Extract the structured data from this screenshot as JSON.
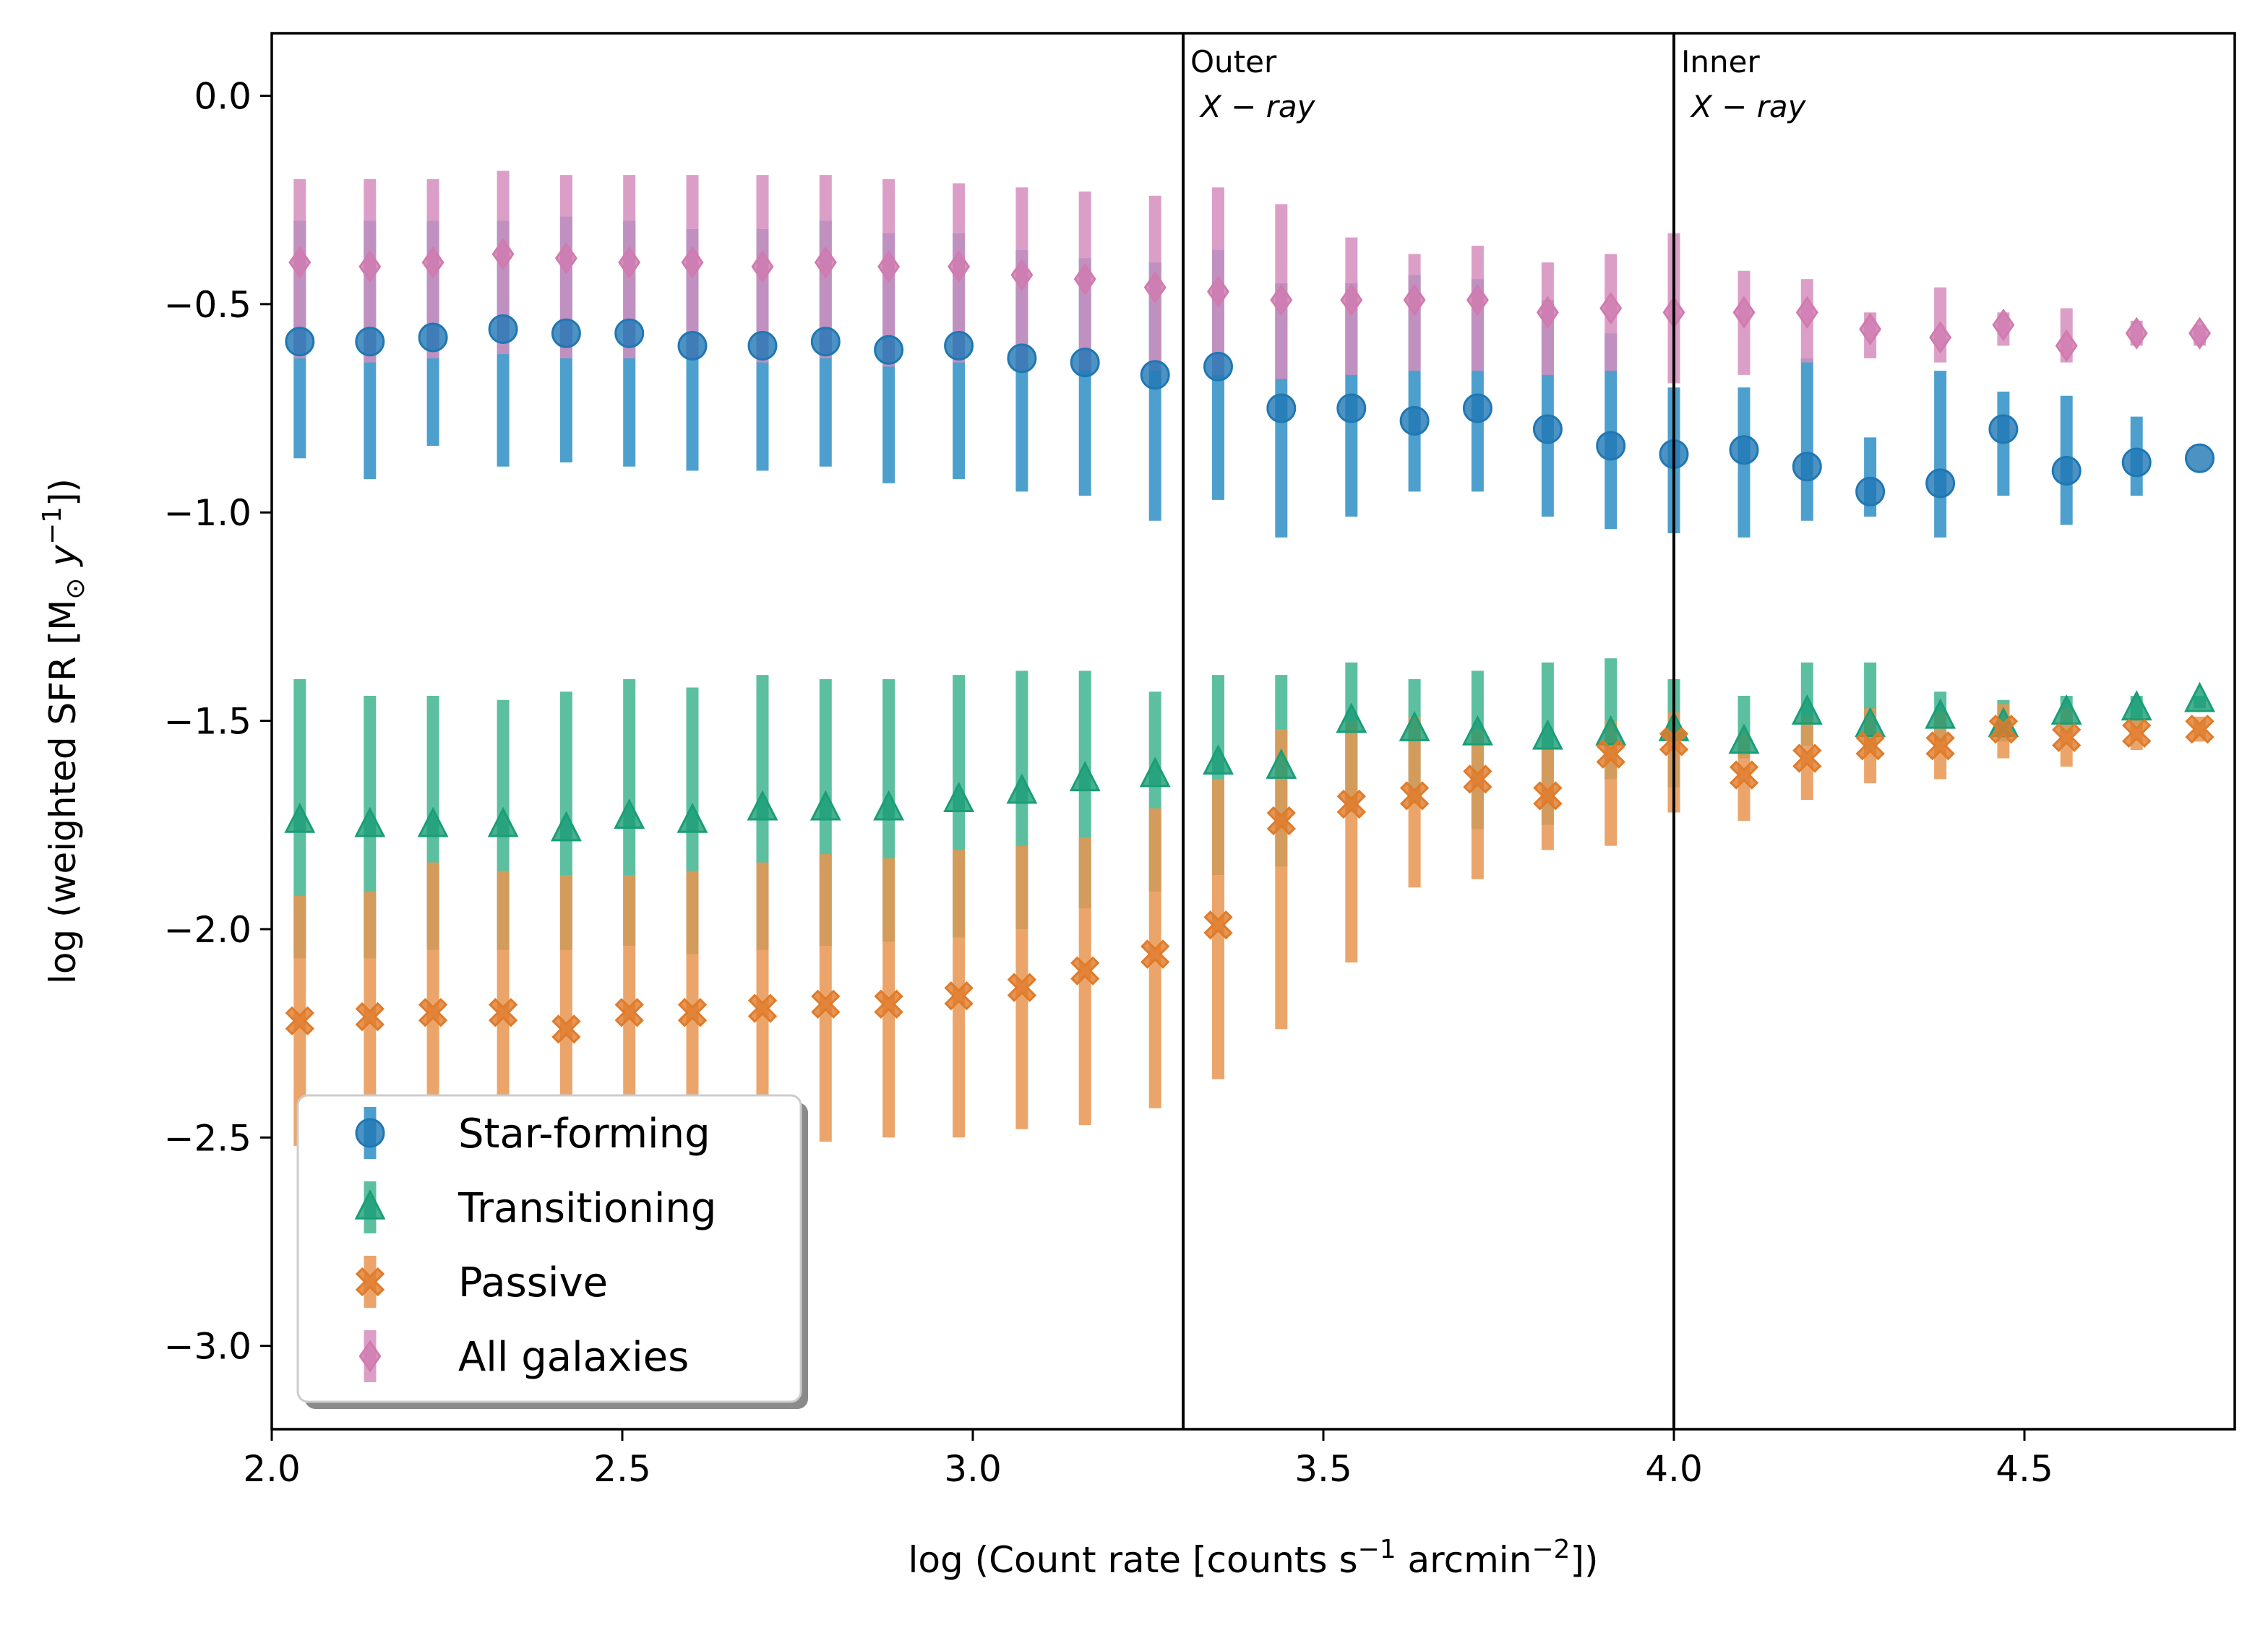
{
  "chart_data": {
    "type": "scatter",
    "xlabel_parts": [
      "log (Count rate [counts s",
      "−1",
      " arcmin",
      "−2",
      "])"
    ],
    "ylabel_parts": [
      "log (weighted SFR [M",
      "⊙",
      " ",
      "y",
      "−1",
      "])"
    ],
    "xlim": [
      2.0,
      4.8
    ],
    "ylim": [
      -3.2,
      0.15
    ],
    "xticks": [
      {
        "v": 2.0,
        "label": "2.0"
      },
      {
        "v": 2.5,
        "label": "2.5"
      },
      {
        "v": 3.0,
        "label": "3.0"
      },
      {
        "v": 3.5,
        "label": "3.5"
      },
      {
        "v": 4.0,
        "label": "4.0"
      },
      {
        "v": 4.5,
        "label": "4.5"
      }
    ],
    "yticks": [
      {
        "v": 0.0,
        "label": "0.0"
      },
      {
        "v": -0.5,
        "label": "−0.5"
      },
      {
        "v": -1.0,
        "label": "−1.0"
      },
      {
        "v": -1.5,
        "label": "−1.5"
      },
      {
        "v": -2.0,
        "label": "−2.0"
      },
      {
        "v": -2.5,
        "label": "−2.5"
      },
      {
        "v": -3.0,
        "label": "−3.0"
      }
    ],
    "vlines": [
      {
        "x": 3.3,
        "label_line1": "Outer",
        "label_line2": "X − ray"
      },
      {
        "x": 4.0,
        "label_line1": "Inner",
        "label_line2": "X − ray"
      }
    ],
    "x": [
      2.04,
      2.14,
      2.23,
      2.33,
      2.42,
      2.51,
      2.6,
      2.7,
      2.79,
      2.88,
      2.98,
      3.07,
      3.16,
      3.26,
      3.35,
      3.44,
      3.54,
      3.63,
      3.72,
      3.82,
      3.91,
      4.0,
      4.1,
      4.19,
      4.28,
      4.38,
      4.47,
      4.56,
      4.66,
      4.75
    ],
    "series": [
      {
        "name": "Star-forming",
        "marker": "circle",
        "color": "#1f77b4",
        "bar_color": "#2e8fc4",
        "values": [
          -0.59,
          -0.59,
          -0.58,
          -0.56,
          -0.57,
          -0.57,
          -0.6,
          -0.6,
          -0.59,
          -0.61,
          -0.6,
          -0.63,
          -0.64,
          -0.67,
          -0.65,
          -0.75,
          -0.75,
          -0.78,
          -0.75,
          -0.8,
          -0.84,
          -0.86,
          -0.85,
          -0.89,
          -0.95,
          -0.93,
          -0.8,
          -0.9,
          -0.88,
          -0.87
        ],
        "lower": [
          -0.87,
          -0.92,
          -0.84,
          -0.89,
          -0.88,
          -0.89,
          -0.9,
          -0.9,
          -0.89,
          -0.93,
          -0.92,
          -0.95,
          -0.96,
          -1.02,
          -0.97,
          -1.06,
          -1.01,
          -0.95,
          -0.95,
          -1.01,
          -1.04,
          -1.05,
          -1.06,
          -1.02,
          -1.01,
          -1.06,
          -0.96,
          -1.03,
          -0.96,
          -0.87
        ],
        "upper": [
          -0.3,
          -0.3,
          -0.3,
          -0.3,
          -0.29,
          -0.3,
          -0.32,
          -0.32,
          -0.3,
          -0.33,
          -0.33,
          -0.37,
          -0.39,
          -0.4,
          -0.37,
          -0.45,
          -0.45,
          -0.43,
          -0.44,
          -0.49,
          -0.57,
          -0.7,
          -0.7,
          -0.63,
          -0.82,
          -0.66,
          -0.71,
          -0.72,
          -0.77,
          -0.87
        ]
      },
      {
        "name": "Transitioning",
        "marker": "triangle",
        "color": "#1a9e77",
        "bar_color": "#3fb48f",
        "values": [
          -1.74,
          -1.75,
          -1.75,
          -1.75,
          -1.76,
          -1.73,
          -1.74,
          -1.71,
          -1.71,
          -1.71,
          -1.69,
          -1.67,
          -1.64,
          -1.63,
          -1.6,
          -1.61,
          -1.5,
          -1.52,
          -1.53,
          -1.54,
          -1.53,
          -1.52,
          -1.55,
          -1.48,
          -1.51,
          -1.49,
          -1.51,
          -1.48,
          -1.47,
          -1.45
        ],
        "lower": [
          -2.07,
          -2.07,
          -2.05,
          -2.05,
          -2.05,
          -2.04,
          -2.06,
          -2.05,
          -2.04,
          -2.03,
          -2.02,
          -2.0,
          -1.95,
          -1.91,
          -1.87,
          -1.85,
          -1.72,
          -1.7,
          -1.76,
          -1.75,
          -1.64,
          -1.66,
          -1.59,
          -1.56,
          -1.57,
          -1.55,
          -1.55,
          -1.53,
          -1.51,
          -1.47
        ],
        "upper": [
          -1.4,
          -1.44,
          -1.44,
          -1.45,
          -1.43,
          -1.4,
          -1.42,
          -1.39,
          -1.4,
          -1.4,
          -1.39,
          -1.38,
          -1.38,
          -1.43,
          -1.39,
          -1.39,
          -1.36,
          -1.4,
          -1.38,
          -1.36,
          -1.35,
          -1.4,
          -1.44,
          -1.36,
          -1.36,
          -1.43,
          -1.45,
          -1.44,
          -1.44,
          -1.44
        ]
      },
      {
        "name": "Passive",
        "marker": "x-filled",
        "color": "#e07b2a",
        "bar_color": "#e89550",
        "values": [
          -2.22,
          -2.21,
          -2.2,
          -2.2,
          -2.24,
          -2.2,
          -2.2,
          -2.19,
          -2.18,
          -2.18,
          -2.16,
          -2.14,
          -2.1,
          -2.06,
          -1.99,
          -1.74,
          -1.7,
          -1.68,
          -1.64,
          -1.68,
          -1.58,
          -1.55,
          -1.63,
          -1.59,
          -1.56,
          -1.56,
          -1.52,
          -1.54,
          -1.53,
          -1.52
        ],
        "lower": [
          -2.52,
          -2.52,
          -2.46,
          -2.5,
          -2.49,
          -2.47,
          -2.46,
          -2.46,
          -2.51,
          -2.5,
          -2.5,
          -2.48,
          -2.47,
          -2.43,
          -2.36,
          -2.24,
          -2.08,
          -1.9,
          -1.88,
          -1.81,
          -1.8,
          -1.72,
          -1.74,
          -1.69,
          -1.65,
          -1.64,
          -1.59,
          -1.61,
          -1.57,
          -1.55
        ],
        "upper": [
          -1.92,
          -1.91,
          -1.84,
          -1.86,
          -1.87,
          -1.87,
          -1.86,
          -1.84,
          -1.82,
          -1.83,
          -1.81,
          -1.8,
          -1.78,
          -1.71,
          -1.64,
          -1.52,
          -1.5,
          -1.49,
          -1.52,
          -1.57,
          -1.5,
          -1.48,
          -1.53,
          -1.49,
          -1.47,
          -1.48,
          -1.46,
          -1.47,
          -1.49,
          -1.49
        ]
      },
      {
        "name": "All galaxies",
        "marker": "diamond",
        "color": "#d07bb0",
        "bar_color": "#d58ebd",
        "values": [
          -0.4,
          -0.41,
          -0.4,
          -0.38,
          -0.39,
          -0.4,
          -0.4,
          -0.41,
          -0.4,
          -0.41,
          -0.41,
          -0.43,
          -0.44,
          -0.46,
          -0.47,
          -0.49,
          -0.49,
          -0.49,
          -0.49,
          -0.52,
          -0.51,
          -0.52,
          -0.52,
          -0.52,
          -0.56,
          -0.58,
          -0.55,
          -0.6,
          -0.57,
          -0.57
        ],
        "lower": [
          -0.63,
          -0.64,
          -0.63,
          -0.62,
          -0.63,
          -0.63,
          -0.63,
          -0.64,
          -0.63,
          -0.65,
          -0.64,
          -0.66,
          -0.66,
          -0.66,
          -0.67,
          -0.68,
          -0.67,
          -0.66,
          -0.66,
          -0.67,
          -0.66,
          -0.69,
          -0.67,
          -0.64,
          -0.63,
          -0.64,
          -0.6,
          -0.64,
          -0.6,
          -0.6
        ],
        "upper": [
          -0.2,
          -0.2,
          -0.2,
          -0.18,
          -0.19,
          -0.19,
          -0.19,
          -0.19,
          -0.19,
          -0.2,
          -0.21,
          -0.22,
          -0.23,
          -0.24,
          -0.22,
          -0.26,
          -0.34,
          -0.38,
          -0.36,
          -0.4,
          -0.38,
          -0.33,
          -0.42,
          -0.44,
          -0.52,
          -0.46,
          -0.52,
          -0.51,
          -0.54,
          -0.55
        ]
      }
    ],
    "legend": {
      "placement": "lower-left"
    }
  }
}
